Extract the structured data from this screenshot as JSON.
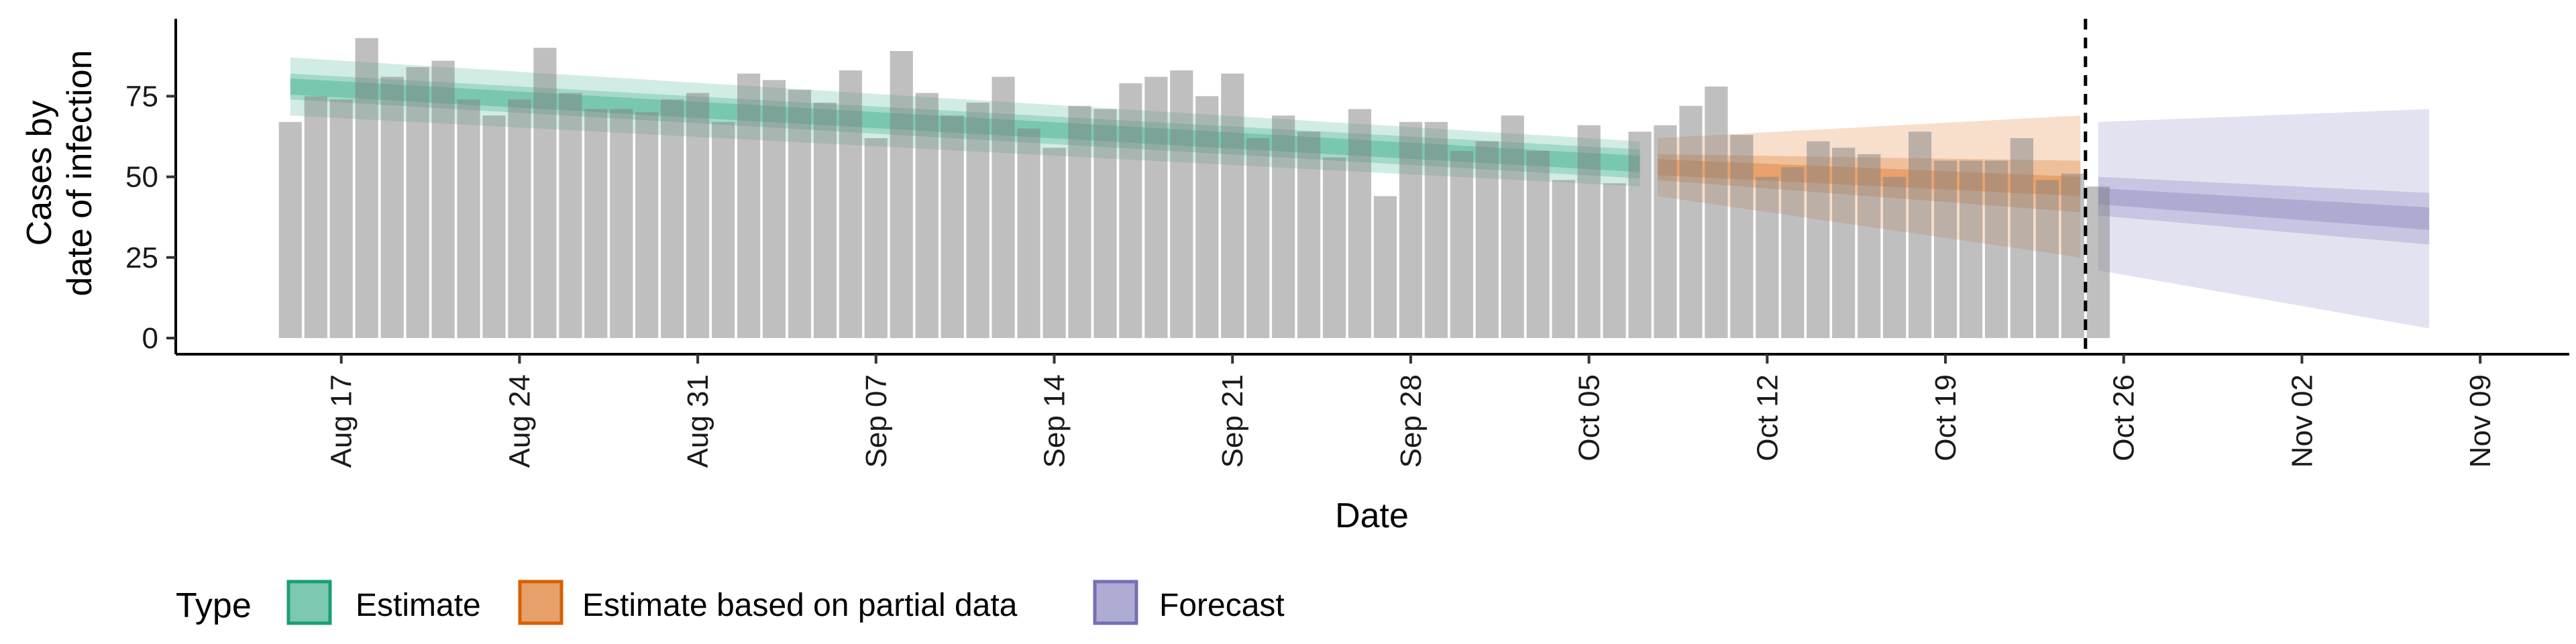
{
  "chart_data": {
    "type": "bar",
    "ylabel_lines": [
      "Cases by",
      "date of infection"
    ],
    "xlabel": "Date",
    "ylim": [
      -5,
      99
    ],
    "y_ticks": [
      0,
      25,
      50,
      75
    ],
    "x_range_days": [
      -4.5,
      89.5
    ],
    "x_ticks": [
      {
        "day": 2,
        "label": "Aug 17"
      },
      {
        "day": 9,
        "label": "Aug 24"
      },
      {
        "day": 16,
        "label": "Aug 31"
      },
      {
        "day": 23,
        "label": "Sep 07"
      },
      {
        "day": 30,
        "label": "Sep 14"
      },
      {
        "day": 37,
        "label": "Sep 21"
      },
      {
        "day": 44,
        "label": "Sep 28"
      },
      {
        "day": 51,
        "label": "Oct 05"
      },
      {
        "day": 58,
        "label": "Oct 12"
      },
      {
        "day": 65,
        "label": "Oct 19"
      },
      {
        "day": 72,
        "label": "Oct 26"
      },
      {
        "day": 79,
        "label": "Nov 02"
      },
      {
        "day": 86,
        "label": "Nov 09"
      }
    ],
    "first_bar_day": 0,
    "bars": [
      67,
      75,
      74,
      93,
      81,
      84,
      86,
      74,
      69,
      74,
      90,
      76,
      71,
      71,
      70,
      74,
      76,
      67,
      82,
      80,
      77,
      73,
      83,
      62,
      89,
      76,
      69,
      73,
      81,
      65,
      59,
      72,
      71,
      79,
      81,
      83,
      75,
      82,
      62,
      69,
      64,
      56,
      71,
      44,
      67,
      67,
      58,
      61,
      69,
      58,
      49,
      66,
      48,
      64,
      66,
      72,
      78,
      63,
      50,
      53,
      61,
      59,
      57,
      50,
      64,
      55,
      55,
      55,
      62,
      49,
      51,
      47
    ],
    "forecast_line_day": 70.5,
    "series": [
      {
        "name": "Estimate",
        "color": "#1B9E77",
        "start_day": 0,
        "end_day": 53,
        "median_start": 78,
        "median_end": 54,
        "inner_half_start": 2.5,
        "inner_half_end": 2.5,
        "mid_half_start": 4,
        "mid_half_end": 4.5,
        "outer_half_start": 9,
        "outer_half_end": 7
      },
      {
        "name": "Estimate based on partial data",
        "color": "#D95F02",
        "start_day": 53.7,
        "end_day": 70.3,
        "median_start": 53,
        "median_end": 47,
        "inner_half_start": 2.5,
        "inner_half_end": 3,
        "mid_half_start": 4,
        "mid_half_end": 8,
        "outer_half_start": 9,
        "outer_half_end": 22
      },
      {
        "name": "Forecast",
        "color": "#7570B3",
        "start_day": 71,
        "end_day": 84,
        "median_start": 44,
        "median_end": 37,
        "inner_half_start": 2.5,
        "inner_half_end": 3.5,
        "mid_half_start": 6,
        "mid_half_end": 8,
        "outer_half_start": 23,
        "outer_half_end": 34
      }
    ],
    "legend": {
      "title": "Type",
      "placement": "bottom-left",
      "items": [
        "Estimate",
        "Estimate based on partial data",
        "Forecast"
      ]
    },
    "grid": false
  }
}
